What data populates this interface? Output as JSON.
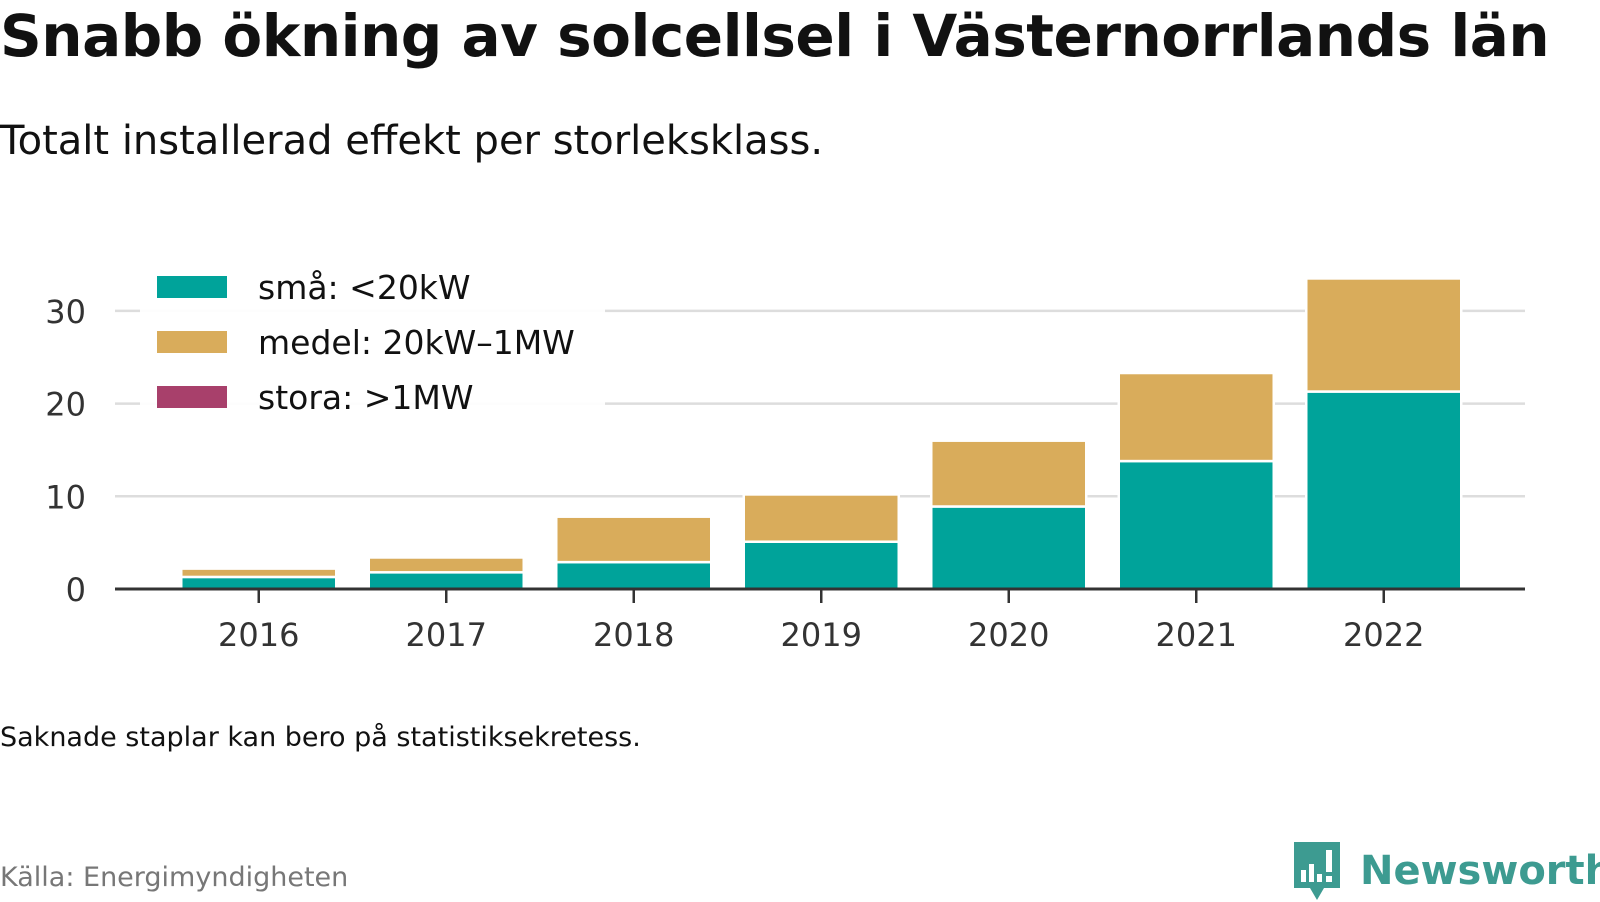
{
  "title": "Snabb ökning av solcellsel i Västernorrlands län",
  "subtitle": "Totalt installerad effekt per storleksklass.",
  "note": "Saknade staplar kan bero på statistiksekretess.",
  "source": "Källa: Energimyndigheten",
  "brand": {
    "name": "Newsworthy",
    "icon": "newsworthy-logo-icon",
    "color": "#3d9b91"
  },
  "chart_data": {
    "type": "bar",
    "stacked": true,
    "categories": [
      "2016",
      "2017",
      "2018",
      "2019",
      "2020",
      "2021",
      "2022"
    ],
    "series": [
      {
        "name": "små: <20kW",
        "color": "#00a39a",
        "values": [
          1.3,
          1.8,
          2.9,
          5.1,
          8.9,
          13.8,
          21.3
        ]
      },
      {
        "name": "medel: 20kW–1MW",
        "color": "#d9ac5b",
        "values": [
          0.9,
          1.6,
          4.9,
          5.1,
          7.1,
          9.5,
          12.2
        ]
      },
      {
        "name": "stora: >1MW",
        "color": "#a8406b",
        "values": [
          0,
          0,
          0,
          0,
          0,
          0,
          0
        ]
      }
    ],
    "ylim": [
      0,
      35
    ],
    "yticks": [
      0,
      10,
      20,
      30
    ],
    "ytick_labels": [
      "0",
      "10",
      "20",
      "30"
    ],
    "xlabel": "",
    "ylabel": "",
    "grid": true,
    "legend_position": "top-left"
  }
}
